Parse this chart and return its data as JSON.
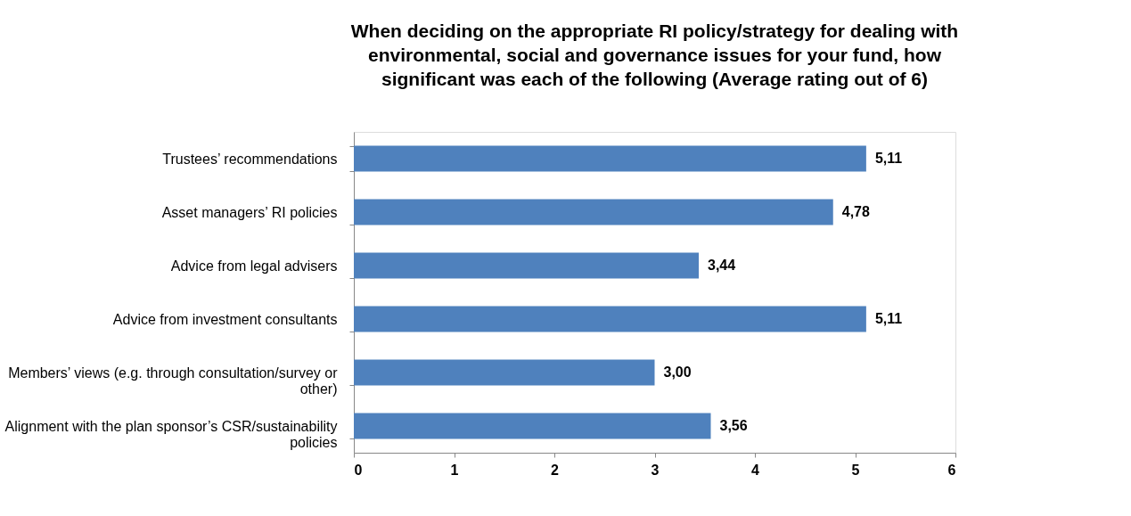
{
  "chart_data": {
    "type": "bar",
    "orientation": "horizontal",
    "title": "When deciding on the appropriate RI policy/strategy for dealing with environmental, social and governance issues for your fund, how significant was each of the following (Average rating out of 6)",
    "categories": [
      "Trustees’ recommendations",
      "Asset managers’ RI policies",
      "Advice from legal advisers",
      "Advice from investment consultants",
      "Members’ views (e.g. through consultation/survey or other)",
      "Alignment with the plan sponsor’s CSR/sustainability policies"
    ],
    "values": [
      5.11,
      4.78,
      3.44,
      5.11,
      3.0,
      3.56
    ],
    "value_labels": [
      "5,11",
      "4,78",
      "3,44",
      "5,11",
      "3,00",
      "3,56"
    ],
    "color": "#4f81bd",
    "xlim": [
      0,
      6
    ],
    "xticks": [
      0,
      1,
      2,
      3,
      4,
      5,
      6
    ],
    "grid": false
  }
}
